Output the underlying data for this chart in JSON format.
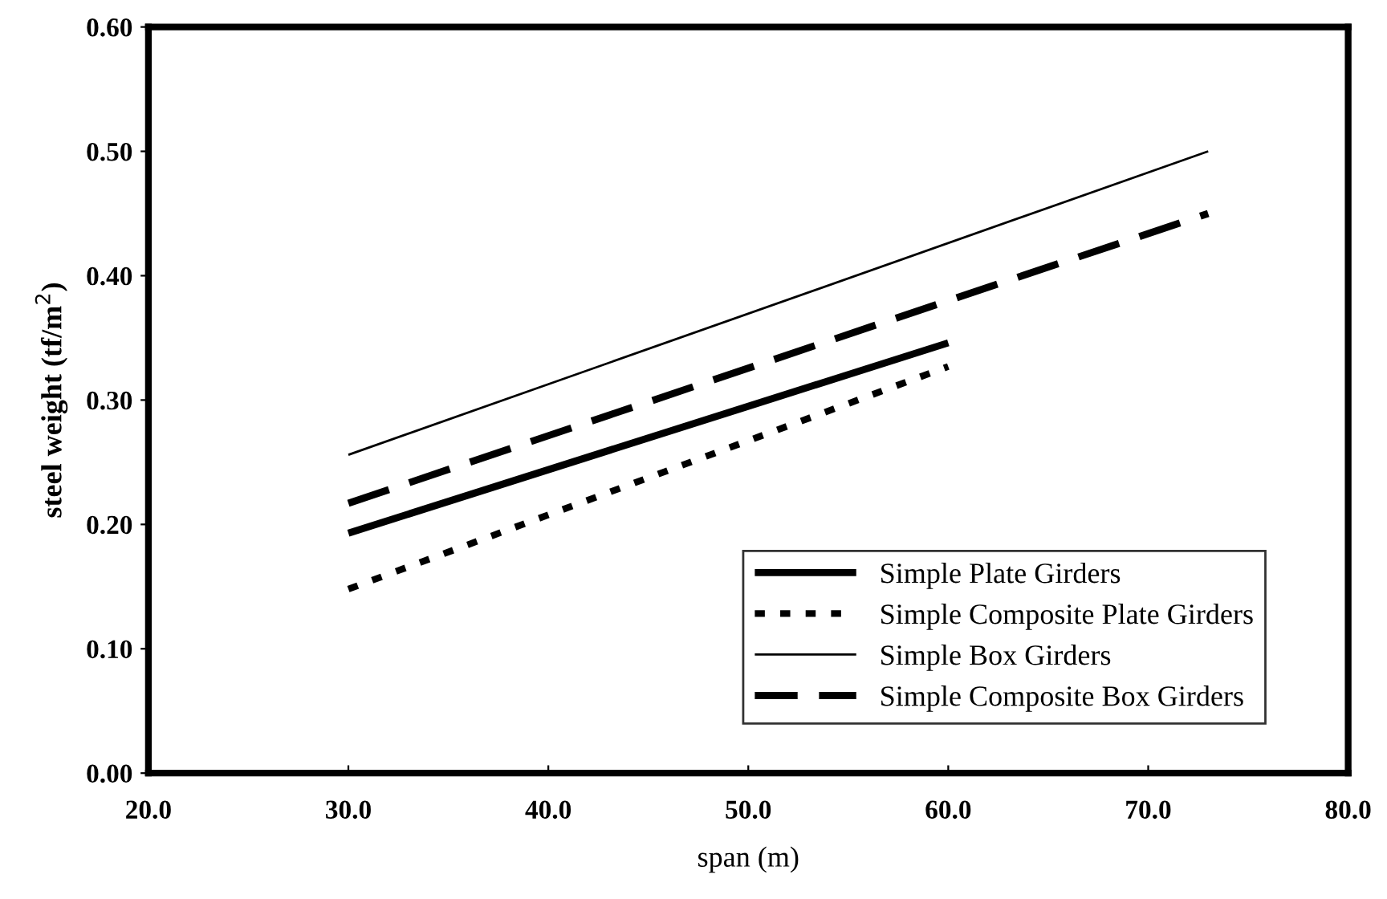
{
  "chart_data": {
    "type": "line",
    "xlabel": "span (m)",
    "ylabel": "steel weight (tf/m$^{2}$)",
    "xlim": [
      20,
      80
    ],
    "xticks": [
      {
        "value": 20,
        "label": "20.0"
      },
      {
        "value": 30,
        "label": "30.0"
      },
      {
        "value": 40,
        "label": "40.0"
      },
      {
        "value": 50,
        "label": "50.0"
      },
      {
        "value": 60,
        "label": "60.0"
      },
      {
        "value": 70,
        "label": "70.0"
      },
      {
        "value": 80,
        "label": "80.0"
      }
    ],
    "ylim": [
      0,
      0.6
    ],
    "yticks": [
      {
        "value": 0,
        "label": "0.00"
      },
      {
        "value": 0.1,
        "label": "0.10"
      },
      {
        "value": 0.2,
        "label": "0.20"
      },
      {
        "value": 0.3,
        "label": "0.30"
      },
      {
        "value": 0.4,
        "label": "0.40"
      },
      {
        "value": 0.5,
        "label": "0.50"
      },
      {
        "value": 0.6,
        "label": "0.60"
      }
    ],
    "grid": false,
    "legend": "bottom right",
    "marker": "none",
    "series": [
      {
        "name": "Simple Plate Girders",
        "color": "#000000",
        "x": [
          30,
          60
        ],
        "values": [
          0.193,
          0.346
        ],
        "line_style": "solid"
      },
      {
        "name": "Simple Composite Plate Girders",
        "color": "#000000",
        "x": [
          30,
          60
        ],
        "values": [
          0.148,
          0.327
        ],
        "line_style": "dotted"
      },
      {
        "name": "Simple Box Girders",
        "color": "#000000",
        "x": [
          30,
          73
        ],
        "values": [
          0.256,
          0.5
        ],
        "line_style": "solid"
      },
      {
        "name": "Simple Composite Box Girders",
        "color": "#000000",
        "x": [
          30,
          60,
          73
        ],
        "values": [
          0.217,
          0.38,
          0.45
        ],
        "line_style": "dashed"
      }
    ]
  }
}
